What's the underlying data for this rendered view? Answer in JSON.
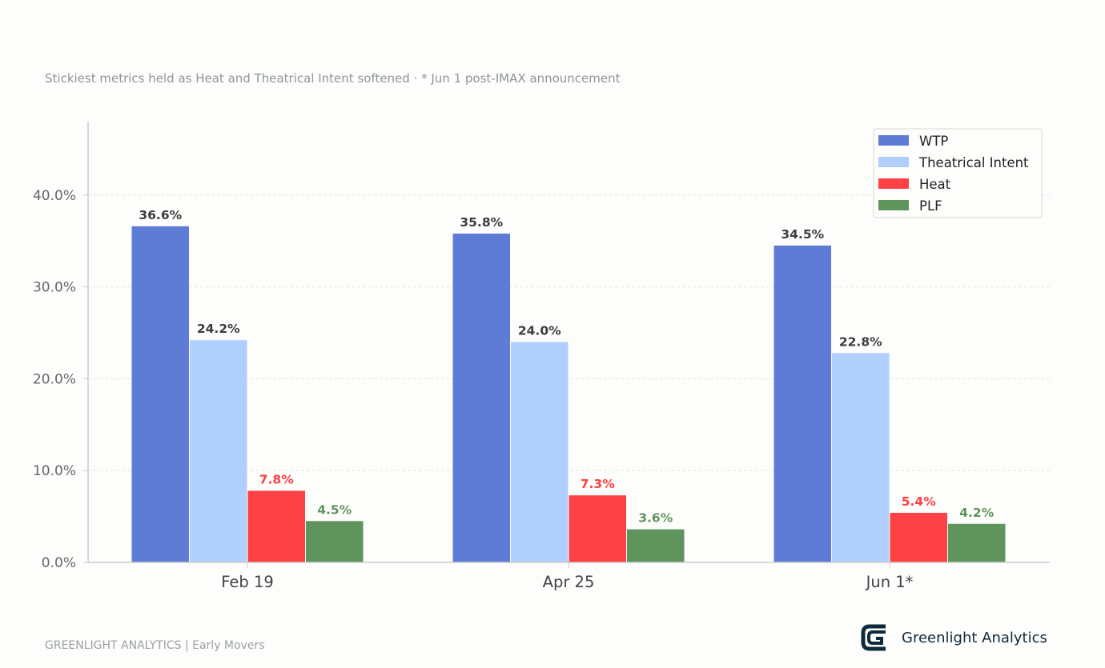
{
  "subtitle": "Stickiest metrics held as Heat and Theatrical Intent softened  ·  * Jun 1 post-IMAX announcement",
  "footer": {
    "left_text": "GREENLIGHT ANALYTICS  |  Early Movers",
    "brand_name": "Greenlight Analytics"
  },
  "chart_data": {
    "type": "bar",
    "categories": [
      "Feb 19",
      "Apr 25",
      "Jun 1*"
    ],
    "series": [
      {
        "name": "WTP",
        "values": [
          36.6,
          35.8,
          34.5
        ],
        "color": "#5e7cd6",
        "label_color": "#3d3d3d"
      },
      {
        "name": "Theatrical Intent",
        "values": [
          24.2,
          24.0,
          22.8
        ],
        "color": "#b1cffd",
        "label_color": "#3d3d3d"
      },
      {
        "name": "Heat",
        "values": [
          7.8,
          7.3,
          5.4
        ],
        "color": "#fe4145",
        "label_color": "#fe4145"
      },
      {
        "name": "PLF",
        "values": [
          4.5,
          3.6,
          4.2
        ],
        "color": "#5f945c",
        "label_color": "#5f945c"
      }
    ],
    "yticks": [
      "0.0%",
      "10.0%",
      "20.0%",
      "30.0%",
      "40.0%"
    ],
    "ylim": [
      0,
      48
    ],
    "grid": true,
    "legend_position": "top-right"
  }
}
